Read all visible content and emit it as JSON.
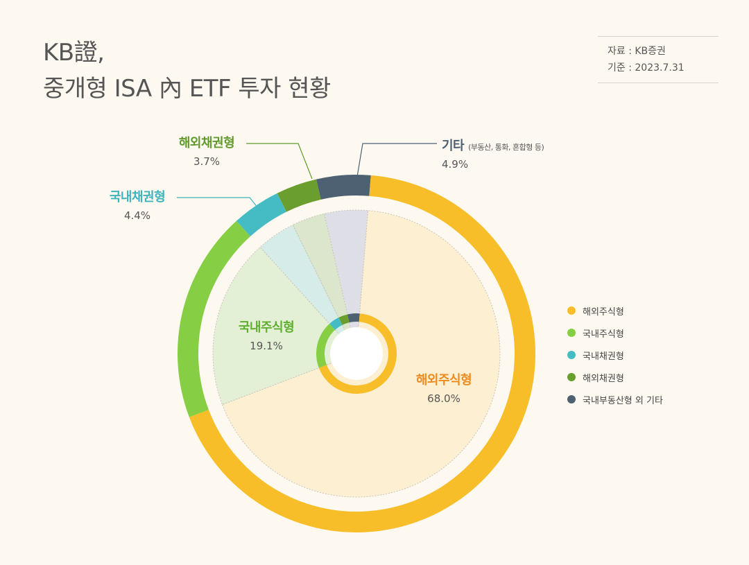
{
  "header": {
    "title_line1": "KB證,",
    "title_line2": "중개형 ISA 內 ETF 투자 현황",
    "source_label": "자료 : KB증권",
    "date_label": "기준 : 2023.7.31"
  },
  "colors": {
    "overseas_equity": "#f8be2a",
    "domestic_equity": "#86cf44",
    "domestic_bond": "#45bcc4",
    "overseas_bond": "#6a9e2f",
    "others": "#4e6173",
    "overseas_equity_label": "#ee8a1e",
    "background": "#fdf9f0"
  },
  "chart_data": {
    "type": "pie",
    "title": "KB證, 중개형 ISA 內 ETF 투자 현황",
    "categories": [
      "해외주식형",
      "국내주식형",
      "국내채권형",
      "해외채권형",
      "기타"
    ],
    "values": [
      68.0,
      19.1,
      4.4,
      3.7,
      4.9
    ],
    "value_labels": [
      "68.0%",
      "19.1%",
      "4.4%",
      "3.7%",
      "4.9%"
    ],
    "others_note": "(부동산, 통화, 혼합형 등)",
    "legend": {
      "position": "right",
      "entries": [
        "해외주식형",
        "국내주식형",
        "국내채권형",
        "해외채권형",
        "국내부동산형 외 기타"
      ]
    }
  }
}
